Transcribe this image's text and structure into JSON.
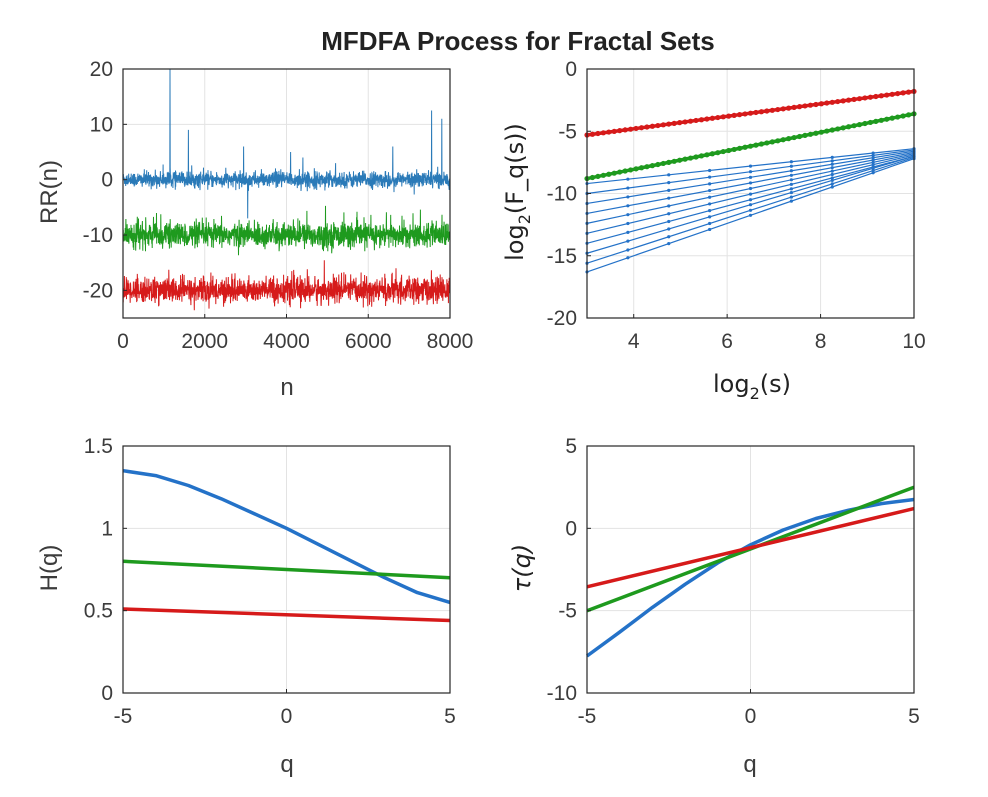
{
  "figure": {
    "title": "MFDFA Process for Fractal Sets"
  },
  "colors": {
    "blue": "#2472c8",
    "green": "#1e9a1e",
    "red": "#d61a1a",
    "rr_blue": "#2a7ab8"
  },
  "chart_data": [
    {
      "id": "rr",
      "type": "line",
      "xlabel": "n",
      "ylabel": "RR(n)",
      "xlim": [
        0,
        8000
      ],
      "ylim": [
        -25,
        20
      ],
      "xticks": [
        0,
        2000,
        4000,
        6000,
        8000
      ],
      "yticks": [
        -20,
        -10,
        0,
        10,
        20
      ],
      "xtick_labels": [
        "0",
        "2000",
        "4000",
        "6000",
        "8000"
      ],
      "ytick_labels": [
        "-20",
        "-10",
        "0",
        "10",
        "20"
      ],
      "grid": true,
      "series": [
        {
          "color": "#2a7ab8",
          "baseline": 0,
          "noise": 1.3,
          "spikes": [
            [
              1150,
              20
            ],
            [
              1600,
              9
            ],
            [
              2950,
              6
            ],
            [
              3050,
              -7
            ],
            [
              4100,
              5
            ],
            [
              4400,
              4
            ],
            [
              5200,
              3
            ],
            [
              6600,
              6
            ],
            [
              7550,
              12.5
            ],
            [
              7800,
              11
            ]
          ]
        },
        {
          "color": "#1e9a1e",
          "baseline": -10,
          "noise": 2.0,
          "spikes": []
        },
        {
          "color": "#d61a1a",
          "baseline": -20,
          "noise": 2.1,
          "spikes": []
        }
      ]
    },
    {
      "id": "fluct",
      "type": "line",
      "xlabel": "log2(s)",
      "ylabel": "log2(F_q(s))",
      "xlim": [
        3,
        10
      ],
      "ylim": [
        -20,
        0
      ],
      "xticks": [
        4,
        6,
        8,
        10
      ],
      "yticks": [
        -20,
        -15,
        -10,
        -5,
        0
      ],
      "xtick_labels": [
        "4",
        "6",
        "8",
        "10"
      ],
      "ytick_labels": [
        "-20",
        "-15",
        "-10",
        "-5",
        "0"
      ],
      "grid": true,
      "series": [
        {
          "color": "#d61a1a",
          "lines": [
            [
              [
                3,
                -5.3
              ],
              [
                10,
                -1.8
              ]
            ]
          ]
        },
        {
          "color": "#1e9a1e",
          "lines": [
            [
              [
                3,
                -8.8
              ],
              [
                10,
                -3.6
              ]
            ]
          ]
        },
        {
          "color": "#2472c8",
          "lines": [
            [
              [
                3,
                -9.2
              ],
              [
                10,
                -6.4
              ]
            ],
            [
              [
                3,
                -10.0
              ],
              [
                10,
                -6.5
              ]
            ],
            [
              [
                3,
                -10.8
              ],
              [
                10,
                -6.6
              ]
            ],
            [
              [
                3,
                -11.6
              ],
              [
                10,
                -6.7
              ]
            ],
            [
              [
                3,
                -12.4
              ],
              [
                10,
                -6.8
              ]
            ],
            [
              [
                3,
                -13.2
              ],
              [
                10,
                -6.9
              ]
            ],
            [
              [
                3,
                -14.0
              ],
              [
                10,
                -7.0
              ]
            ],
            [
              [
                3,
                -14.8
              ],
              [
                10,
                -7.0
              ]
            ],
            [
              [
                3,
                -15.6
              ],
              [
                10,
                -7.1
              ]
            ],
            [
              [
                3,
                -16.3
              ],
              [
                10,
                -7.2
              ]
            ]
          ]
        }
      ]
    },
    {
      "id": "hurst",
      "type": "line",
      "xlabel": "q",
      "ylabel": "H(q)",
      "xlim": [
        -5,
        5
      ],
      "ylim": [
        0,
        1.5
      ],
      "xticks": [
        -5,
        0,
        5
      ],
      "yticks": [
        0,
        0.5,
        1,
        1.5
      ],
      "xtick_labels": [
        "-5",
        "0",
        "5"
      ],
      "ytick_labels": [
        "0",
        "0.5",
        "1",
        "1.5"
      ],
      "grid": true,
      "series": [
        {
          "color": "#2472c8",
          "x": [
            -5,
            -4,
            -3,
            -2,
            -1,
            0,
            1,
            2,
            3,
            4,
            5
          ],
          "y": [
            1.35,
            1.32,
            1.26,
            1.18,
            1.09,
            1.0,
            0.9,
            0.8,
            0.7,
            0.61,
            0.55
          ]
        },
        {
          "color": "#1e9a1e",
          "x": [
            -5,
            5
          ],
          "y": [
            0.8,
            0.7
          ]
        },
        {
          "color": "#d61a1a",
          "x": [
            -5,
            5
          ],
          "y": [
            0.51,
            0.44
          ]
        }
      ]
    },
    {
      "id": "tau",
      "type": "line",
      "xlabel": "q",
      "ylabel": "τ(q)",
      "xlim": [
        -5,
        5
      ],
      "ylim": [
        -10,
        5
      ],
      "xticks": [
        -5,
        0,
        5
      ],
      "yticks": [
        -10,
        -5,
        0,
        5
      ],
      "xtick_labels": [
        "-5",
        "0",
        "5"
      ],
      "ytick_labels": [
        "-10",
        "-5",
        "0",
        "5"
      ],
      "grid": true,
      "series": [
        {
          "color": "#2472c8",
          "x": [
            -5,
            -4,
            -3,
            -2,
            -1,
            0,
            1,
            2,
            3,
            4,
            5
          ],
          "y": [
            -7.75,
            -6.3,
            -4.8,
            -3.4,
            -2.1,
            -1.0,
            -0.1,
            0.6,
            1.1,
            1.5,
            1.75
          ]
        },
        {
          "color": "#1e9a1e",
          "x": [
            -5,
            5
          ],
          "y": [
            -5.0,
            2.5
          ]
        },
        {
          "color": "#d61a1a",
          "x": [
            -5,
            5
          ],
          "y": [
            -3.55,
            1.2
          ]
        }
      ]
    }
  ]
}
